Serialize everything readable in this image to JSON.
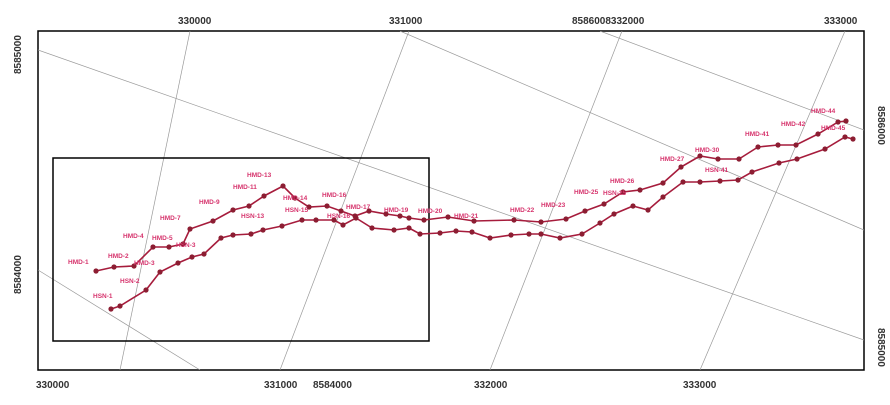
{
  "colors": {
    "frame": "#000000",
    "grid": "#9a9a9a",
    "line": "#a61c3c",
    "point_fill": "#8c1d32",
    "label": "#d6336c"
  },
  "ticks": {
    "top": [
      "330000",
      "331000",
      "8586008332000",
      "333000"
    ],
    "bottom": [
      "330000",
      "331000",
      "8584000",
      "332000",
      "333000"
    ],
    "left": [
      "8585000",
      "8584000"
    ],
    "right": [
      "8586000",
      "8585000"
    ]
  },
  "labels": {
    "hmd1": "HMD-1",
    "hmd2": "HMD-2",
    "hmd3": "HMD-3",
    "hmd4": "HMD-4",
    "hmd5": "HMD-5",
    "hmd7": "HMD-7",
    "hmd9": "HMD-9",
    "hmd11": "HMD-11",
    "hmd13": "HMD-13",
    "hmd14": "HMD-14",
    "hmd16": "HMD-16",
    "hmd17": "HMD-17",
    "hmd19": "HMD-19",
    "hmd20": "HMD-20",
    "hmd21": "HMD-21",
    "hmd22": "HMD-22",
    "hmd23": "HMD-23",
    "hmd25": "HMD-25",
    "hmd26": "HMD-26",
    "hmd27": "HMD-27",
    "hmd30": "HMD-30",
    "hmd41": "HMD-41",
    "hmd42": "HMD-42",
    "hmd44": "HMD-44",
    "hmd45": "HMD-45",
    "hsn1": "HSN-1",
    "hsn2": "HSN-2",
    "hsn3": "HSN-3",
    "hsn13": "HSN-13",
    "hsn15": "HSN-15",
    "hsn16": "HSN-16",
    "hsn25": "HSN-25",
    "hsn41": "HSN-41"
  }
}
